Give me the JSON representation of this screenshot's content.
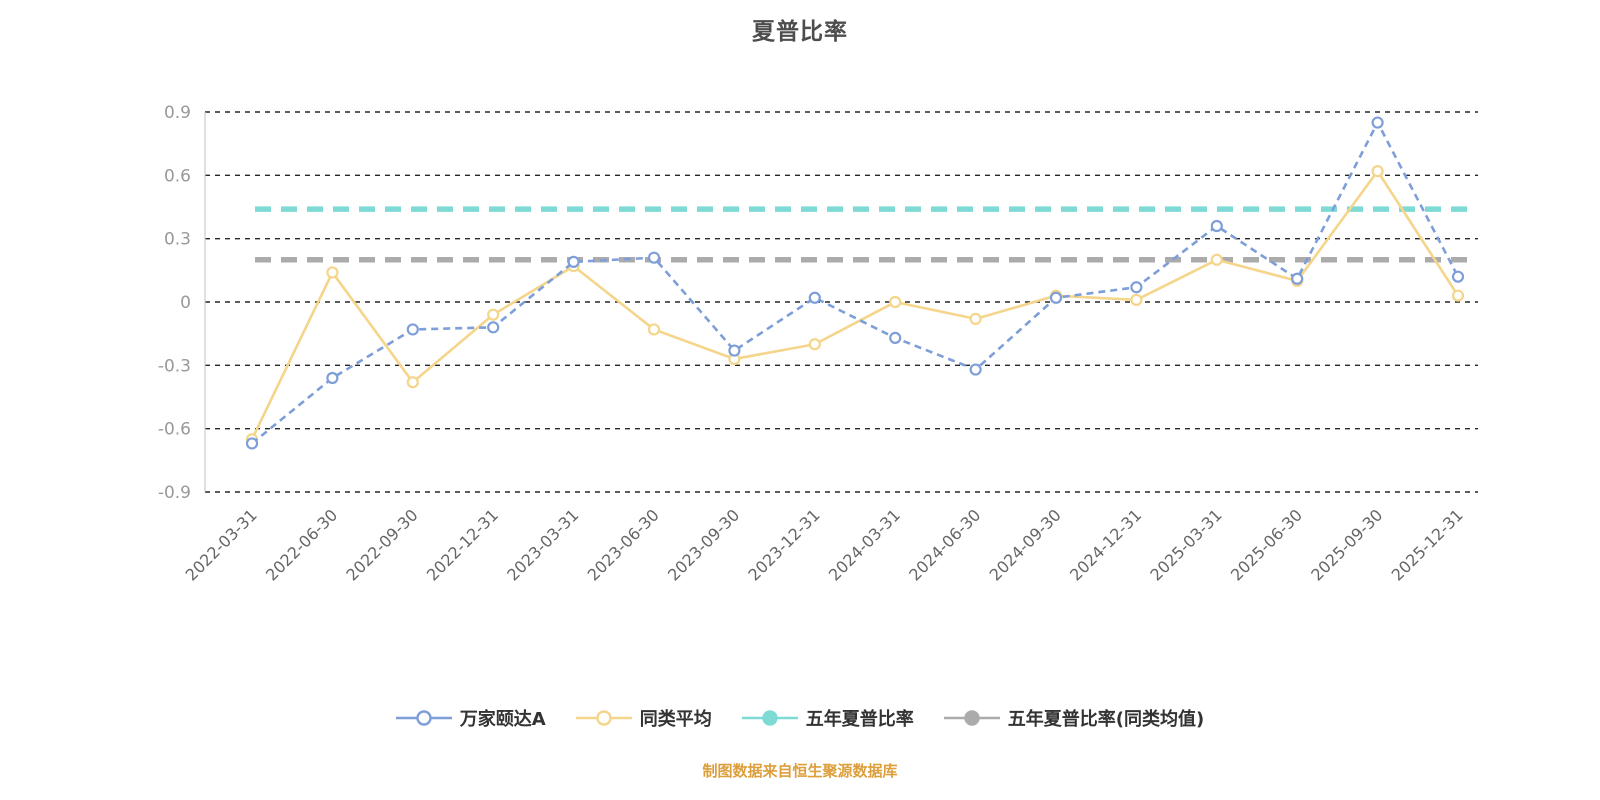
{
  "title": "夏普比率",
  "caption": "制图数据来自恒生聚源数据库",
  "chart_data": {
    "type": "line",
    "title": "夏普比率",
    "categories": [
      "2022-03-31",
      "2022-06-30",
      "2022-09-30",
      "2022-12-31",
      "2023-03-31",
      "2023-06-30",
      "2023-09-30",
      "2023-12-31",
      "2024-03-31",
      "2024-06-30",
      "2024-09-30",
      "2024-12-31",
      "2025-03-31",
      "2025-06-30",
      "2025-09-30",
      "2025-12-31"
    ],
    "series": [
      {
        "name": "万家颐达A",
        "color": "#7d9ed8",
        "dashed": true,
        "values": [
          -0.67,
          -0.36,
          -0.13,
          -0.12,
          0.19,
          0.21,
          -0.23,
          0.02,
          -0.17,
          -0.32,
          0.02,
          0.07,
          0.36,
          0.11,
          0.85,
          0.12
        ]
      },
      {
        "name": "同类平均",
        "color": "#f4d58a",
        "dashed": false,
        "values": [
          -0.65,
          0.14,
          -0.38,
          -0.06,
          0.17,
          -0.13,
          -0.27,
          -0.2,
          0.0,
          -0.08,
          0.03,
          0.01,
          0.2,
          0.1,
          0.62,
          0.03
        ]
      }
    ],
    "reference_lines": [
      {
        "name": "五年夏普比率",
        "color": "#7edad4",
        "value": 0.44
      },
      {
        "name": "五年夏普比率(同类均值)",
        "color": "#ababab",
        "value": 0.2
      }
    ],
    "ylim": [
      -0.9,
      0.9
    ],
    "yticks": [
      0.9,
      0.6,
      0.3,
      0,
      -0.3,
      -0.6,
      -0.9
    ],
    "grid": true,
    "legend_position": "bottom",
    "style": {
      "grid_color": "#262626",
      "axis_label_color": "#999999",
      "tick_label_color": "#666666",
      "axis_line_color": "#cccccc",
      "title_color": "#4d4d4d",
      "caption_color": "#dd9f3c"
    }
  }
}
